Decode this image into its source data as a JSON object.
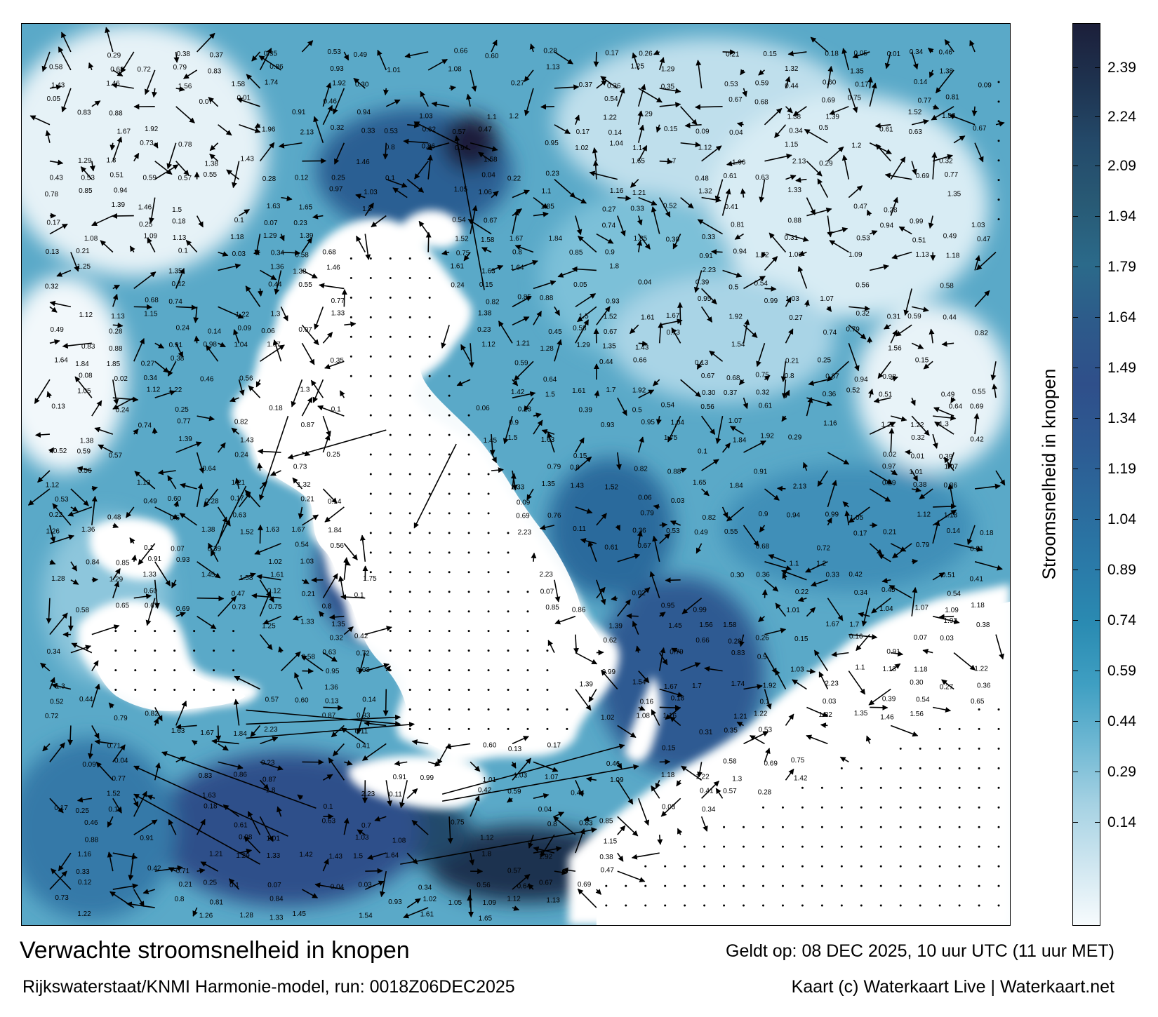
{
  "title": "Verwachte stroomsnelheid in knopen",
  "subtitle": "Rijkswaterstaat/KNMI Harmonie-model, run: 0018Z06DEC2025",
  "valid_time": "Geldt op: 08 DEC 2025, 10 uur UTC (11 uur MET)",
  "credit": "Kaart (c) Waterkaart Live | Waterkaart.net",
  "legend": {
    "title": "Stroomsnelheid in knopen",
    "ticks": [
      "2.39",
      "2.24",
      "2.09",
      "1.94",
      "1.79",
      "1.64",
      "1.49",
      "1.34",
      "1.19",
      "1.04",
      "0.89",
      "0.74",
      "0.59",
      "0.44",
      "0.29",
      "0.14"
    ],
    "colors": [
      "#f7fbfd",
      "#cfe6f0",
      "#a6d2e3",
      "#6fb8d3",
      "#3f9fc2",
      "#2a8bb2",
      "#2a7aa8",
      "#2b6a9c",
      "#2d5a92",
      "#2f4f8a",
      "#2d5a8a",
      "#2b6a8a",
      "#285a75",
      "#244a6a",
      "#1e3350",
      "#1c1f3a"
    ]
  },
  "speed_labels": [
    {
      "v": "0.29"
    },
    {
      "v": "0.30"
    },
    {
      "v": "0.27"
    },
    {
      "v": "0.38"
    },
    {
      "v": "0.37"
    },
    {
      "v": "0.32"
    },
    {
      "v": "0.11"
    },
    {
      "v": "0.36"
    },
    {
      "v": "0.33"
    },
    {
      "v": "0.31"
    },
    {
      "v": "0.35"
    },
    {
      "v": "0.43"
    },
    {
      "v": "0.42"
    },
    {
      "v": "0.53"
    },
    {
      "v": "0.52"
    },
    {
      "v": "0.51"
    },
    {
      "v": "0.59"
    },
    {
      "v": "0.62"
    },
    {
      "v": "0.71"
    },
    {
      "v": "0.44"
    },
    {
      "v": "0.49"
    },
    {
      "v": "0.41"
    },
    {
      "v": "0.66"
    },
    {
      "v": "0.57"
    },
    {
      "v": "0.55"
    },
    {
      "v": "0.60"
    },
    {
      "v": "0.47"
    },
    {
      "v": "0.28"
    },
    {
      "v": "0.12"
    },
    {
      "v": "0.13"
    },
    {
      "v": "0.24"
    },
    {
      "v": "0.17"
    },
    {
      "v": "0.19"
    },
    {
      "v": "0.26"
    },
    {
      "v": "0.21"
    },
    {
      "v": "0.25"
    },
    {
      "v": "0.14"
    },
    {
      "v": "0.15"
    },
    {
      "v": "0.16"
    },
    {
      "v": "0.18"
    },
    {
      "v": "0.09"
    },
    {
      "v": "0.1"
    },
    {
      "v": "0.08"
    },
    {
      "v": "0.05"
    },
    {
      "v": "0.06"
    },
    {
      "v": "0.07"
    },
    {
      "v": "0.04"
    },
    {
      "v": "0.03"
    },
    {
      "v": "0.02"
    },
    {
      "v": "0.01"
    },
    {
      "v": "0.22"
    },
    {
      "v": "0.23"
    },
    {
      "v": "0.39"
    },
    {
      "v": "0.34"
    },
    {
      "v": "0.45"
    },
    {
      "v": "0.46"
    },
    {
      "v": "0.48"
    },
    {
      "v": "0.5"
    },
    {
      "v": "0.54"
    },
    {
      "v": "0.56"
    },
    {
      "v": "0.58"
    },
    {
      "v": "0.61"
    },
    {
      "v": "0.63"
    },
    {
      "v": "0.64"
    },
    {
      "v": "0.65"
    },
    {
      "v": "0.67"
    },
    {
      "v": "0.68"
    },
    {
      "v": "0.69"
    },
    {
      "v": "0.7"
    },
    {
      "v": "0.72"
    },
    {
      "v": "0.73"
    },
    {
      "v": "0.74"
    },
    {
      "v": "0.75"
    },
    {
      "v": "0.76"
    },
    {
      "v": "0.77"
    },
    {
      "v": "0.78"
    },
    {
      "v": "0.79"
    },
    {
      "v": "0.8"
    },
    {
      "v": "0.81"
    },
    {
      "v": "0.82"
    },
    {
      "v": "0.83"
    },
    {
      "v": "0.84"
    },
    {
      "v": "0.85"
    },
    {
      "v": "0.86"
    },
    {
      "v": "0.87"
    },
    {
      "v": "0.88"
    },
    {
      "v": "0.9"
    },
    {
      "v": "0.91"
    },
    {
      "v": "0.93"
    },
    {
      "v": "0.94"
    },
    {
      "v": "0.95"
    },
    {
      "v": "0.97"
    },
    {
      "v": "0.98"
    },
    {
      "v": "0.99"
    },
    {
      "v": "1.01"
    },
    {
      "v": "1.02"
    },
    {
      "v": "1.03"
    },
    {
      "v": "1.04"
    },
    {
      "v": "1.05"
    },
    {
      "v": "1.06"
    },
    {
      "v": "1.07"
    },
    {
      "v": "1.08"
    },
    {
      "v": "1.09"
    },
    {
      "v": "1.1"
    },
    {
      "v": "1.12"
    },
    {
      "v": "1.13"
    },
    {
      "v": "1.15"
    },
    {
      "v": "1.16"
    },
    {
      "v": "1.18"
    },
    {
      "v": "1.2"
    },
    {
      "v": "1.21"
    },
    {
      "v": "1.22"
    },
    {
      "v": "1.25"
    },
    {
      "v": "1.26"
    },
    {
      "v": "1.28"
    },
    {
      "v": "1.29"
    },
    {
      "v": "1.3"
    },
    {
      "v": "1.32"
    },
    {
      "v": "1.33"
    },
    {
      "v": "1.35"
    },
    {
      "v": "1.36"
    },
    {
      "v": "1.38"
    },
    {
      "v": "1.39"
    },
    {
      "v": "1.42"
    },
    {
      "v": "1.43"
    },
    {
      "v": "1.45"
    },
    {
      "v": "1.46"
    },
    {
      "v": "1.5"
    },
    {
      "v": "1.52"
    },
    {
      "v": "1.54"
    },
    {
      "v": "1.56"
    },
    {
      "v": "1.58"
    },
    {
      "v": "1.61"
    },
    {
      "v": "1.63"
    },
    {
      "v": "1.64"
    },
    {
      "v": "1.65"
    },
    {
      "v": "1.67"
    },
    {
      "v": "1.7"
    },
    {
      "v": "1.74"
    },
    {
      "v": "1.75"
    },
    {
      "v": "1.8"
    },
    {
      "v": "1.84"
    },
    {
      "v": "1.85"
    },
    {
      "v": "1.92"
    },
    {
      "v": "1.96"
    },
    {
      "v": "2.13"
    },
    {
      "v": "2.23"
    }
  ]
}
